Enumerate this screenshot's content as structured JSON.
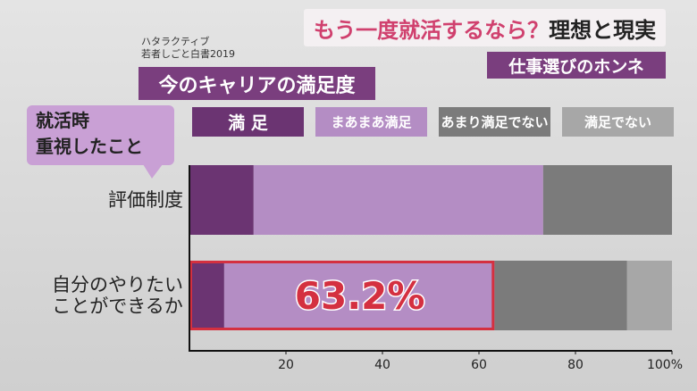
{
  "chart_data": {
    "type": "stacked-bar-horizontal",
    "title": {
      "highlight": "もう一度就活するなら？",
      "rest": "理想と現実"
    },
    "subtitle": "仕事選びのホンネ",
    "source": [
      "ハタラクティブ",
      "若者しごと白書2019"
    ],
    "chart_title": "今のキャリアの満足度",
    "category_heading": "就活時\n重視したこと",
    "categories": [
      "評価制度",
      "自分のやりたい\nことができるか"
    ],
    "series": [
      {
        "name": "満 足",
        "color": "#6b3472",
        "values": [
          13.3,
          7.2
        ]
      },
      {
        "name": "まあまあ満足",
        "color": "#b48dc4",
        "values": [
          60.0,
          56.0
        ]
      },
      {
        "name": "あまり満足でない",
        "color": "#7b7b7b",
        "values": [
          26.7,
          27.5
        ]
      },
      {
        "name": "満足でない",
        "color": "#a7a7a7",
        "values": [
          0,
          9.3
        ]
      }
    ],
    "highlight": {
      "value": 63.2,
      "label": "63.2%"
    },
    "xlim": [
      0,
      100
    ],
    "xticks": [
      20,
      40,
      60,
      80,
      {
        "value": 100,
        "label": "100%"
      }
    ]
  }
}
